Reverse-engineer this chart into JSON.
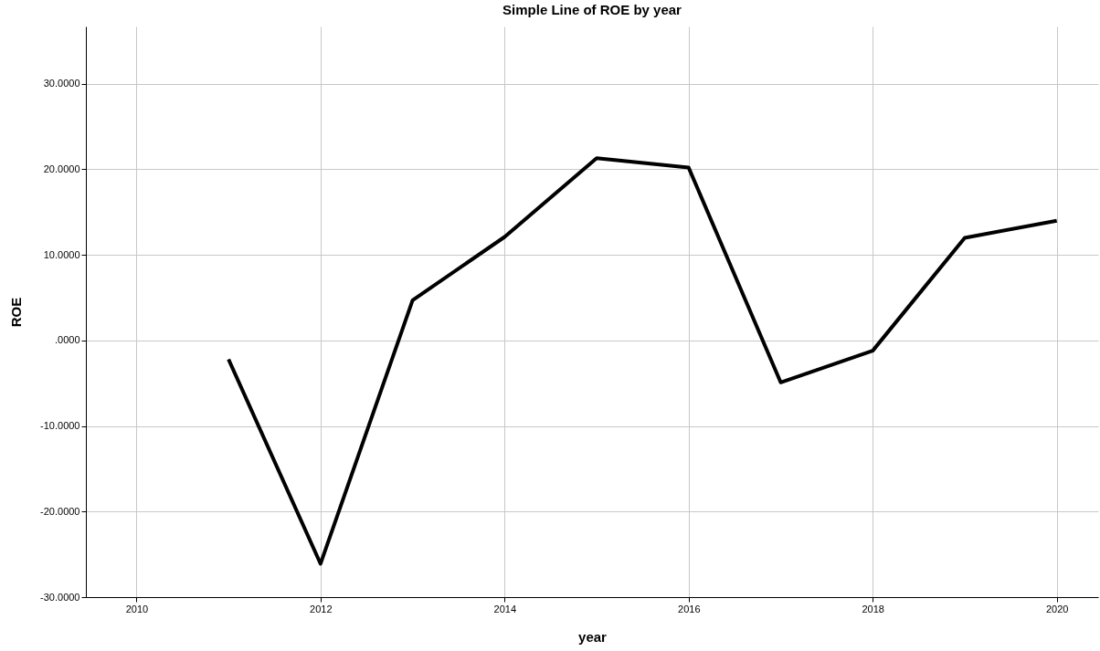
{
  "chart_data": {
    "type": "line",
    "title": "Simple Line of ROE by year",
    "xlabel": "year",
    "ylabel": "ROE",
    "x": [
      2011,
      2012,
      2013,
      2014,
      2015,
      2016,
      2017,
      2018,
      2019,
      2020
    ],
    "series": [
      {
        "color": "#000000",
        "values": [
          -2.2,
          -26.1,
          4.7,
          12.1,
          21.3,
          20.2,
          -4.9,
          -1.2,
          12.0,
          14.0
        ]
      }
    ],
    "xlim": [
      2009.45,
      2020.45
    ],
    "xticks": [
      2010,
      2012,
      2014,
      2016,
      2018,
      2020
    ],
    "ylim": [
      -30,
      36.7
    ],
    "yticks": [
      {
        "value": -30,
        "label": "-30.0000"
      },
      {
        "value": -20,
        "label": "-20.0000"
      },
      {
        "value": -10,
        "label": "-10.0000"
      },
      {
        "value": 0,
        "label": ".0000"
      },
      {
        "value": 10,
        "label": "10.0000"
      },
      {
        "value": 20,
        "label": "20.0000"
      },
      {
        "value": 30,
        "label": "30.0000"
      }
    ],
    "grid": true,
    "marker": "none",
    "line_style": "solid"
  }
}
